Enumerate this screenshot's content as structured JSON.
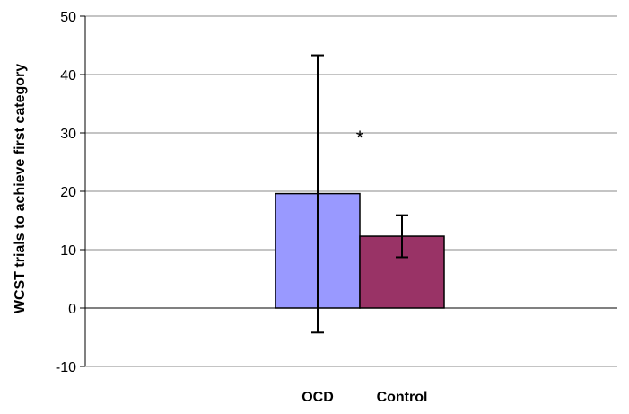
{
  "chart_data": {
    "type": "bar",
    "title": "",
    "ylabel": "WCST trials to achieve first category",
    "xlabel": "",
    "ylim": [
      -10,
      50
    ],
    "yticks": [
      -10,
      0,
      10,
      20,
      30,
      40,
      50
    ],
    "ytick_labels": [
      "-10",
      "0",
      "10",
      "20",
      "30",
      "40",
      "50"
    ],
    "grid": true,
    "categories": [
      "OCD",
      "Control"
    ],
    "values": [
      19.6,
      12.3
    ],
    "error_low": [
      -4.2,
      8.7
    ],
    "error_high": [
      43.3,
      15.9
    ],
    "colors": [
      "#9999ff",
      "#993366"
    ],
    "annotations": [
      {
        "text": "*",
        "x": 0.5,
        "y": 28
      }
    ]
  }
}
